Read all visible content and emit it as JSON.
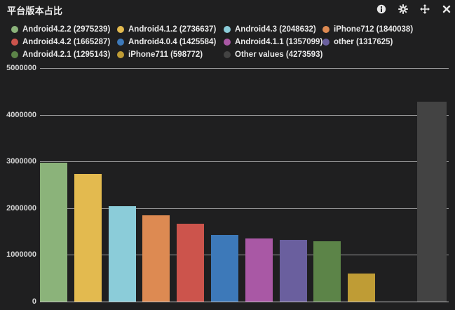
{
  "panel": {
    "title": "平台版本占比",
    "toolbar": {
      "info": "info-circle-icon",
      "settings": "gear-icon",
      "move": "move-icon",
      "close": "close-icon"
    }
  },
  "colors": {
    "panel_background": "#1f1f20",
    "grid_line": "#c7c7c7",
    "text": "#e9e9e9",
    "other_values_bar": "#434343"
  },
  "legend": {
    "items": [
      {
        "name": "Android4.2.2",
        "count": 2975239,
        "color": "#8BB37A"
      },
      {
        "name": "Android4.1.2",
        "count": 2736637,
        "color": "#E3BA4F"
      },
      {
        "name": "Android4.3",
        "count": 2048632,
        "color": "#8BCCD9"
      },
      {
        "name": "iPhone712",
        "count": 1840038,
        "color": "#DD8A52"
      },
      {
        "name": "Android4.4.2",
        "count": 1665287,
        "color": "#CC544C"
      },
      {
        "name": "Android4.0.4",
        "count": 1425584,
        "color": "#3D79B9"
      },
      {
        "name": "Android4.1.1",
        "count": 1357099,
        "color": "#A958A5"
      },
      {
        "name": "other",
        "count": 1317625,
        "color": "#6A5F9E"
      },
      {
        "name": "Android4.2.1",
        "count": 1295143,
        "color": "#5C8448"
      },
      {
        "name": "iPhone711",
        "count": 598772,
        "color": "#BF9C35"
      },
      {
        "name": "Other values",
        "count": 4273593,
        "color": "#434343"
      }
    ]
  },
  "chart_data": {
    "type": "bar",
    "title": "平台版本占比",
    "categories": [
      "Android4.2.2",
      "Android4.1.2",
      "Android4.3",
      "iPhone712",
      "Android4.4.2",
      "Android4.0.4",
      "Android4.1.1",
      "other",
      "Android4.2.1",
      "iPhone711",
      "Other values"
    ],
    "values": [
      2975239,
      2736637,
      2048632,
      1840038,
      1665287,
      1425584,
      1357099,
      1317625,
      1295143,
      598772,
      4273593
    ],
    "colors": [
      "#8BB37A",
      "#E3BA4F",
      "#8BCCD9",
      "#DD8A52",
      "#CC544C",
      "#3D79B9",
      "#A958A5",
      "#6A5F9E",
      "#5C8448",
      "#BF9C35",
      "#434343"
    ],
    "xlabel": "",
    "ylabel": "",
    "ylim": [
      0,
      5000000
    ],
    "yticks": [
      0,
      1000000,
      2000000,
      3000000,
      4000000,
      5000000
    ],
    "grid": true,
    "legend_position": "top",
    "bar_labels_on_x_axis": false
  }
}
